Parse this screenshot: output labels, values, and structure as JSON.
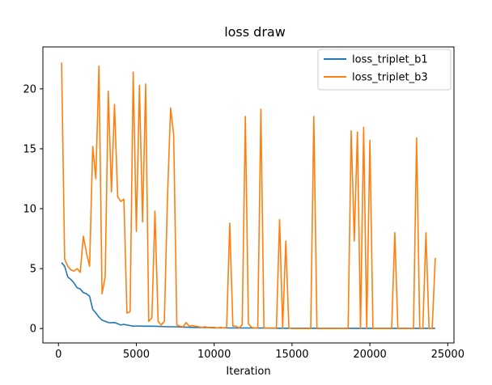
{
  "chart_data": {
    "type": "line",
    "title": "loss draw",
    "xlabel": "Iteration",
    "ylabel": "",
    "xlim": [
      -1000,
      25400
    ],
    "ylim": [
      -1.2,
      23.5
    ],
    "xticks": [
      0,
      5000,
      10000,
      15000,
      20000,
      25000
    ],
    "yticks": [
      0,
      5,
      10,
      15,
      20
    ],
    "grid": false,
    "legend_position": "top-right",
    "series": [
      {
        "name": "loss_triplet_b1",
        "color": "#1f77b4",
        "x": [
          200,
          400,
          600,
          800,
          1000,
          1200,
          1400,
          1600,
          1800,
          2000,
          2200,
          2400,
          2600,
          2800,
          3000,
          3200,
          3400,
          3600,
          3800,
          4000,
          4200,
          4400,
          4600,
          4800,
          5000,
          5500,
          6000,
          6500,
          7000,
          7500,
          8000,
          8500,
          9000,
          9500,
          10000,
          11000,
          12000,
          13000,
          14000,
          15000,
          17000,
          20000,
          24200
        ],
        "y": [
          5.5,
          5.2,
          4.3,
          4.1,
          3.8,
          3.4,
          3.3,
          3.0,
          2.9,
          2.7,
          1.6,
          1.3,
          0.95,
          0.7,
          0.6,
          0.5,
          0.48,
          0.5,
          0.4,
          0.3,
          0.35,
          0.3,
          0.25,
          0.2,
          0.22,
          0.2,
          0.2,
          0.18,
          0.15,
          0.15,
          0.12,
          0.1,
          0.08,
          0.08,
          0.06,
          0.05,
          0.05,
          0.04,
          0.03,
          0.03,
          0.02,
          0.02,
          0.02
        ]
      },
      {
        "name": "loss_triplet_b3",
        "color": "#ff7f0e",
        "x": [
          200,
          400,
          600,
          800,
          1000,
          1200,
          1400,
          1600,
          1800,
          2000,
          2200,
          2400,
          2600,
          2800,
          3000,
          3200,
          3400,
          3600,
          3800,
          4000,
          4200,
          4400,
          4600,
          4800,
          5000,
          5200,
          5400,
          5600,
          5800,
          6000,
          6200,
          6400,
          6600,
          6800,
          7000,
          7200,
          7400,
          7600,
          7800,
          8000,
          8200,
          8400,
          8600,
          8800,
          9000,
          9200,
          9400,
          9600,
          9800,
          10000,
          10200,
          10400,
          10600,
          10800,
          11000,
          11200,
          11400,
          11600,
          11800,
          12000,
          12200,
          12400,
          12600,
          12800,
          13000,
          13200,
          13400,
          13600,
          13800,
          14000,
          14200,
          14400,
          14600,
          14800,
          15000,
          15500,
          16000,
          16200,
          16400,
          16600,
          16800,
          17000,
          17500,
          18000,
          18500,
          18600,
          18800,
          19000,
          19200,
          19400,
          19600,
          19800,
          20000,
          20200,
          20400,
          20600,
          20800,
          21000,
          21200,
          21400,
          21600,
          21800,
          22000,
          22200,
          22400,
          22600,
          22800,
          23000,
          23200,
          23400,
          23600,
          23800,
          24000,
          24200
        ],
        "y": [
          22.2,
          5.8,
          5.2,
          4.9,
          4.8,
          5.0,
          4.7,
          7.7,
          6.3,
          5.2,
          15.2,
          12.5,
          21.9,
          2.9,
          4.3,
          19.8,
          11.4,
          18.7,
          11.0,
          10.6,
          10.8,
          1.3,
          1.4,
          21.4,
          8.1,
          20.3,
          8.9,
          20.4,
          0.6,
          0.9,
          9.8,
          0.6,
          0.3,
          0.6,
          10.8,
          18.4,
          16.2,
          0.3,
          0.2,
          0.15,
          0.5,
          0.2,
          0.25,
          0.2,
          0.15,
          0.1,
          0.15,
          0.1,
          0.1,
          0.1,
          0.05,
          0.1,
          0.05,
          0.1,
          8.8,
          0.2,
          0.2,
          0.05,
          0.3,
          17.7,
          0.4,
          0.1,
          0.05,
          0.05,
          18.3,
          0.05,
          0.05,
          0.05,
          0.05,
          0.05,
          9.1,
          0.05,
          7.3,
          0.05,
          0.0,
          0.0,
          0.0,
          0.0,
          17.7,
          0.0,
          0.0,
          0.0,
          0.0,
          0.0,
          0.0,
          0.0,
          16.5,
          7.3,
          16.4,
          0.0,
          16.8,
          0.0,
          15.7,
          0.0,
          0.0,
          0.0,
          0.0,
          0.0,
          0.0,
          0.0,
          8.0,
          0.0,
          0.0,
          0.0,
          0.0,
          0.0,
          0.0,
          15.9,
          0.0,
          0.0,
          8.0,
          0.0,
          0.0,
          5.9
        ]
      }
    ]
  }
}
